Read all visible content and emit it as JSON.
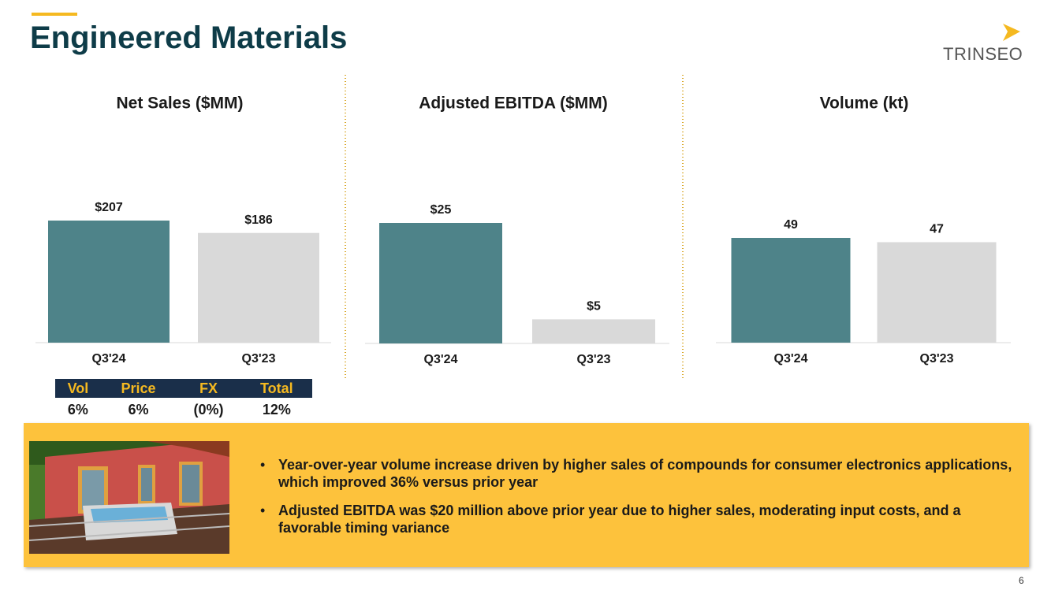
{
  "header": {
    "title": "Engineered Materials",
    "logo": "TRINSEO",
    "page_number": "6"
  },
  "chart_data": [
    {
      "type": "bar",
      "title": "Net Sales ($MM)",
      "categories": [
        "Q3'24",
        "Q3'23"
      ],
      "values": [
        207,
        186
      ],
      "value_labels": [
        "$207",
        "$186"
      ],
      "colors": [
        "#4e8389",
        "#d9d9d9"
      ]
    },
    {
      "type": "bar",
      "title": "Adjusted EBITDA ($MM)",
      "categories": [
        "Q3'24",
        "Q3'23"
      ],
      "values": [
        25,
        5
      ],
      "value_labels": [
        "$25",
        "$5"
      ],
      "colors": [
        "#4e8389",
        "#d9d9d9"
      ]
    },
    {
      "type": "bar",
      "title": "Volume (kt)",
      "categories": [
        "Q3'24",
        "Q3'23"
      ],
      "values": [
        49,
        47
      ],
      "colors": [
        "#4e8389",
        "#d9d9d9"
      ]
    }
  ],
  "table": {
    "header": [
      "Vol",
      "Price",
      "FX",
      "Total"
    ],
    "rows": [
      [
        "6%",
        "6%",
        "(0%)",
        "12%"
      ]
    ]
  },
  "bullets": [
    "Year-over-year volume increase driven by higher sales of compounds for consumer electronics applications, which improved 36% versus prior year",
    "Adjusted EBITDA was $20 million above prior year due to higher sales, moderating input costs, and a favorable timing variance"
  ]
}
